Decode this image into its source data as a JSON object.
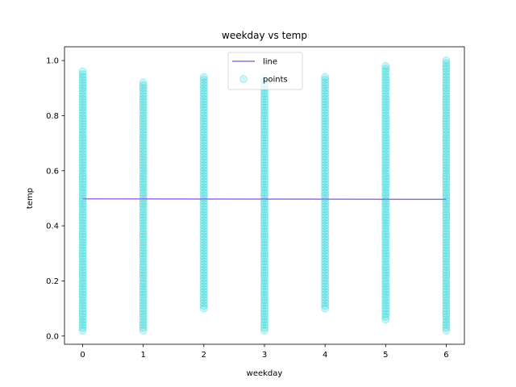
{
  "chart_data": {
    "type": "scatter",
    "title": "weekday vs temp",
    "xlabel": "weekday",
    "ylabel": "temp",
    "xlim": [
      -0.3,
      6.3
    ],
    "ylim": [
      -0.03,
      1.05
    ],
    "xticks": [
      0,
      1,
      2,
      3,
      4,
      5,
      6
    ],
    "yticks": [
      0.0,
      0.2,
      0.4,
      0.6,
      0.8,
      1.0
    ],
    "xtick_labels": [
      "0",
      "1",
      "2",
      "3",
      "4",
      "5",
      "6"
    ],
    "ytick_labels": [
      "0.0",
      "0.2",
      "0.4",
      "0.6",
      "0.8",
      "1.0"
    ],
    "grid": false,
    "legend": {
      "placement": "top-center",
      "entries": [
        {
          "label": "line",
          "kind": "line",
          "color": "#9370db"
        },
        {
          "label": "points",
          "kind": "marker",
          "color": "#00ced1"
        }
      ]
    },
    "series": [
      {
        "name": "line",
        "kind": "line",
        "color": "#9370db",
        "points": [
          {
            "x": 0,
            "y": 0.498
          },
          {
            "x": 6,
            "y": 0.496
          }
        ]
      },
      {
        "name": "points",
        "kind": "scatter",
        "color": "#00ced1",
        "alpha": 0.2,
        "groups": [
          {
            "x": 0,
            "min": 0.02,
            "max": 0.96,
            "outliers": [
              0.02,
              0.04,
              0.07,
              0.08,
              0.93,
              0.96
            ]
          },
          {
            "x": 1,
            "min": 0.02,
            "max": 0.92,
            "outliers": [
              0.02,
              0.04,
              0.06,
              0.9,
              0.92
            ]
          },
          {
            "x": 2,
            "min": 0.1,
            "max": 0.94,
            "outliers": [
              0.1,
              0.92,
              0.94
            ]
          },
          {
            "x": 3,
            "min": 0.02,
            "max": 0.94,
            "outliers": [
              0.02,
              0.06,
              0.08,
              0.1,
              0.92,
              0.94
            ]
          },
          {
            "x": 4,
            "min": 0.1,
            "max": 0.94,
            "outliers": [
              0.1,
              0.12,
              0.92,
              0.94
            ]
          },
          {
            "x": 5,
            "min": 0.06,
            "max": 0.98,
            "outliers": [
              0.06,
              0.08,
              0.1,
              0.96,
              0.98
            ]
          },
          {
            "x": 6,
            "min": 0.02,
            "max": 1.0,
            "outliers": [
              0.02,
              0.04,
              0.06,
              0.08,
              0.96,
              1.0
            ]
          }
        ],
        "step": 0.01
      }
    ]
  }
}
